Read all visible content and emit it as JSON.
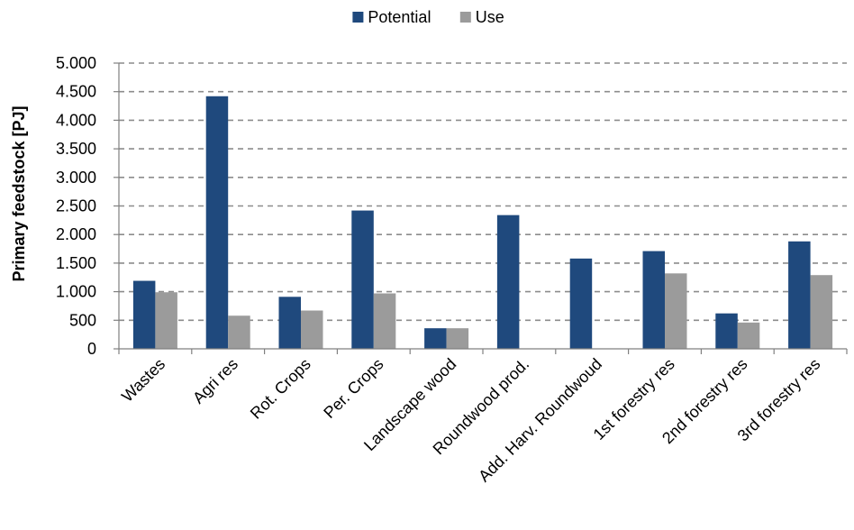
{
  "chart_data": {
    "type": "bar",
    "title": "",
    "xlabel": "",
    "ylabel": "Primary feedstock [PJ]",
    "ylim": [
      0,
      5000
    ],
    "yticks": [
      0,
      500,
      1000,
      1500,
      2000,
      2500,
      3000,
      3500,
      4000,
      4500,
      5000
    ],
    "ytick_labels": [
      "0",
      "500",
      "1.000",
      "1.500",
      "2.000",
      "2.500",
      "3.000",
      "3.500",
      "4.000",
      "4.500",
      "5.000"
    ],
    "grid": "horizontal dashed",
    "legend_position": "top-center",
    "categories": [
      "Wastes",
      "Agri res",
      "Rot. Crops",
      "Per. Crops",
      "Landscape wood",
      "Roundwood prod.",
      "Add. Harv. Roundwoud",
      "1st forestry res",
      "2nd forestry res",
      "3rd forestry res"
    ],
    "series": [
      {
        "name": "Potential",
        "color": "#1f497d",
        "values": [
          1190,
          4420,
          910,
          2420,
          360,
          2340,
          1580,
          1710,
          620,
          1880
        ]
      },
      {
        "name": "Use",
        "color": "#9b9b9b",
        "values": [
          990,
          580,
          670,
          970,
          360,
          0,
          0,
          1320,
          460,
          1290
        ]
      }
    ]
  }
}
